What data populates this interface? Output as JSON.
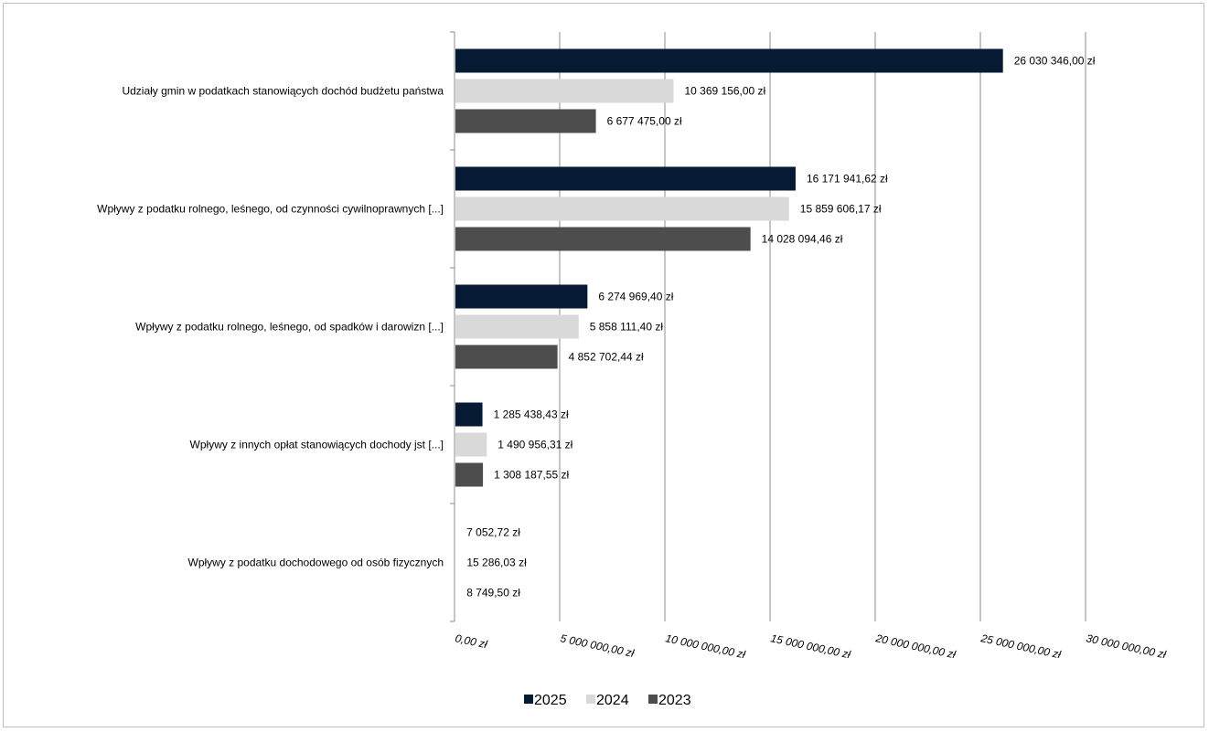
{
  "chart_data": {
    "type": "bar",
    "orientation": "horizontal",
    "title": "",
    "xlabel": "",
    "ylabel": "",
    "categories": [
      "Udziały gmin w podatkach stanowiących dochód budżetu państwa",
      "Wpływy z podatku rolnego, leśnego, od czynności cywilnoprawnych [...]",
      "Wpływy z podatku rolnego, leśnego, od spadków i darowizn [...]",
      "Wpływy z innych opłat stanowiących dochody jst [...]",
      "Wpływy z podatku dochodowego od osób fizycznych"
    ],
    "series": [
      {
        "name": "2025",
        "color": "#061a33",
        "values": [
          26030346.0,
          16171941.62,
          6274969.4,
          1285438.43,
          7052.72
        ],
        "labels": [
          "26 030 346,00 zł",
          "16 171 941,62 zł",
          "6 274 969,40 zł",
          "1 285 438,43 zł",
          "7 052,72 zł"
        ]
      },
      {
        "name": "2024",
        "color": "#d9d9d9",
        "values": [
          10369156.0,
          15859606.17,
          5858111.4,
          1490956.31,
          15286.03
        ],
        "labels": [
          "10 369 156,00 zł",
          "15 859 606,17 zł",
          "5 858 111,40 zł",
          "1 490 956,31 zł",
          "15 286,03 zł"
        ]
      },
      {
        "name": "2023",
        "color": "#4d4d4d",
        "values": [
          6677475.0,
          14028094.46,
          4852702.44,
          1308187.55,
          8749.5
        ],
        "labels": [
          "6 677 475,00 zł",
          "14 028 094,46 zł",
          "4 852 702,44 zł",
          "1 308 187,55 zł",
          "8 749,50 zł"
        ]
      }
    ],
    "xlim": [
      0,
      30000000
    ],
    "x_ticks": [
      0,
      5000000,
      10000000,
      15000000,
      20000000,
      25000000,
      30000000
    ],
    "x_tick_labels": [
      "0,00 zł",
      "5 000 000,00 zł",
      "10 000 000,00 zł",
      "15 000 000,00 zł",
      "20 000 000,00 zł",
      "25 000 000,00 zł",
      "30 000 000,00 zł"
    ],
    "grid": true,
    "legend_position": "bottom"
  }
}
